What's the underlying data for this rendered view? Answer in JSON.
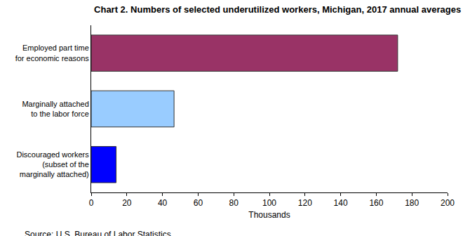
{
  "chart_data": {
    "type": "bar",
    "orientation": "horizontal",
    "title": "Chart 2. Numbers of selected underutilized workers, Michigan, 2017 annual averages",
    "x_label": "Thousands",
    "source": "Source: U.S. Bureau of Labor Statistics.",
    "categories": [
      "Employed part time for economic reasons",
      "Marginally attached to the labor force",
      "Discouraged workers (subset of the marginally attached)"
    ],
    "values": [
      172,
      46.5,
      14
    ],
    "colors": [
      "#993366",
      "#99ccff",
      "#0000ff"
    ],
    "xlim": [
      0,
      200
    ],
    "xticks": [
      0,
      20,
      40,
      60,
      80,
      100,
      120,
      140,
      160,
      180,
      200
    ],
    "grid": false
  }
}
